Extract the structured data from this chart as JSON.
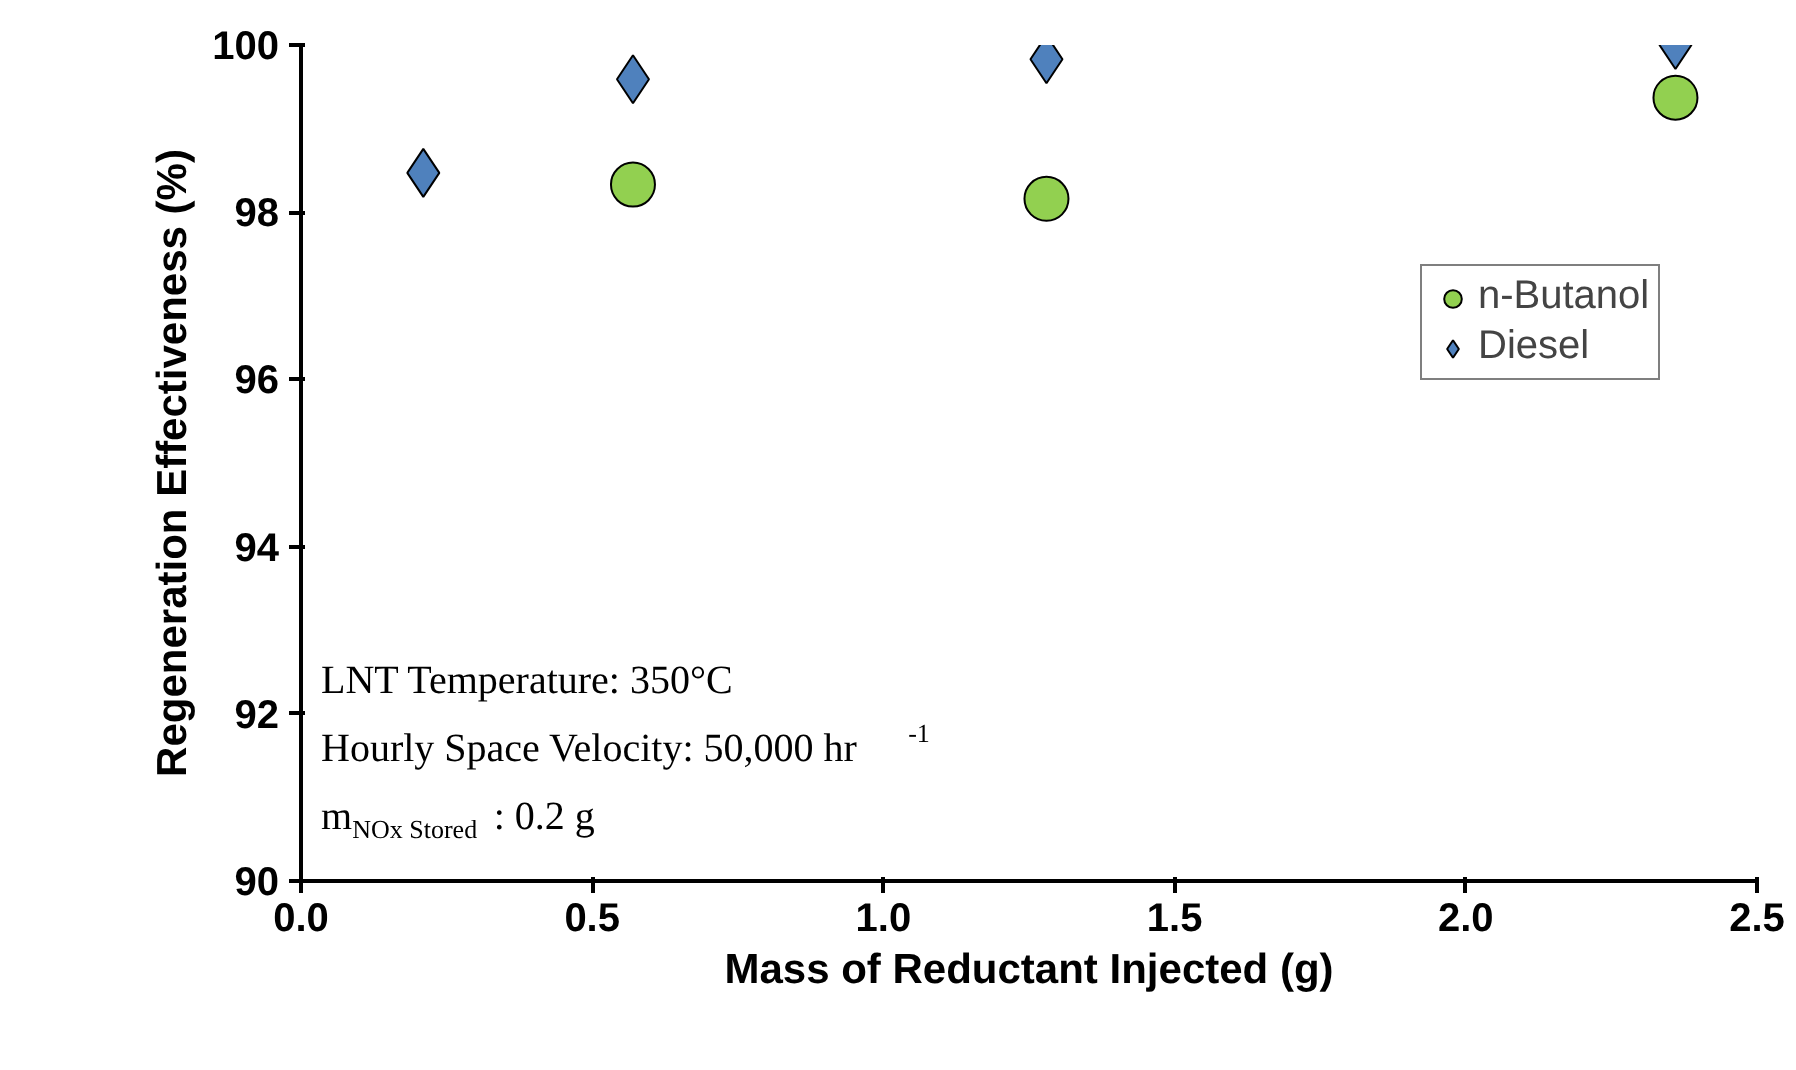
{
  "chart_data": {
    "type": "scatter",
    "xlabel": "Mass of Reductant Injected (g)",
    "ylabel": "Regeneration Effectiveness (%)",
    "series": [
      {
        "name": "n-Butanol",
        "color": "#92d050",
        "marker": "circle",
        "x": [
          0.57,
          1.28,
          2.36
        ],
        "values": [
          98.33,
          98.16,
          99.37
        ]
      },
      {
        "name": "Diesel",
        "color": "#4f81bd",
        "marker": "diamond",
        "x": [
          0.21,
          0.57,
          1.28,
          2.36
        ],
        "values": [
          98.47,
          99.59,
          99.83,
          100.0
        ]
      }
    ],
    "xlim": [
      0,
      2.5
    ],
    "xticks": [
      {
        "value": 0,
        "label": "0.0"
      },
      {
        "value": 0.5,
        "label": "0.5"
      },
      {
        "value": 1,
        "label": "1.0"
      },
      {
        "value": 1.5,
        "label": "1.5"
      },
      {
        "value": 2,
        "label": "2.0"
      },
      {
        "value": 2.5,
        "label": "2.5"
      }
    ],
    "ylim": [
      90,
      100
    ],
    "yticks": [
      90,
      92,
      94,
      96,
      98,
      100
    ],
    "grid": false,
    "legend": "top right",
    "annotations": [
      "LNT Temperature: 350°C",
      "Hourly Space Velocity: 50,000 hr$^{-1}$",
      "m$_{NOx Stored}$: 0.2 g"
    ]
  }
}
